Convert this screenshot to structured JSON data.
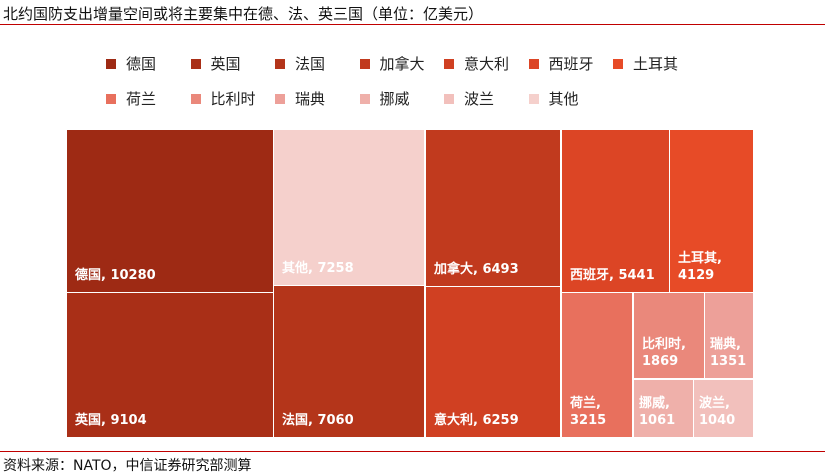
{
  "title": "北约国防支出增量空间或将主要集中在德、法、英三国（单位：亿美元）",
  "source": "资料来源：NATO，中信证券研究部测算",
  "chart_data": {
    "type": "treemap",
    "title": "北约国防支出增量空间或将主要集中在德、法、英三国（单位：亿美元）",
    "unit": "亿美元",
    "legend_position": "top",
    "items": [
      {
        "name": "德国",
        "value": 10280,
        "label": "德国, 10280",
        "color": "#9e2a14"
      },
      {
        "name": "英国",
        "value": 9104,
        "label": "英国, 9104",
        "color": "#a92f17"
      },
      {
        "name": "法国",
        "value": 7060,
        "label": "法国, 7060",
        "color": "#b4351a"
      },
      {
        "name": "加拿大",
        "value": 6493,
        "label": "加拿大, 6493",
        "color": "#c13a1e"
      },
      {
        "name": "意大利",
        "value": 6259,
        "label": "意大利, 6259",
        "color": "#d04022"
      },
      {
        "name": "西班牙",
        "value": 5441,
        "label": "西班牙, 5441",
        "color": "#dc4525"
      },
      {
        "name": "土耳其",
        "value": 4129,
        "label": "土耳其,\n4129",
        "color": "#e74b27"
      },
      {
        "name": "荷兰",
        "value": 3215,
        "label": "荷兰,\n3215",
        "color": "#e8705d"
      },
      {
        "name": "比利时",
        "value": 1869,
        "label": "比利时,\n1869",
        "color": "#ea887b"
      },
      {
        "name": "瑞典",
        "value": 1351,
        "label": "瑞典,\n1351",
        "color": "#eda099"
      },
      {
        "name": "挪威",
        "value": 1061,
        "label": "挪威,\n1061",
        "color": "#efb0aa"
      },
      {
        "name": "波兰",
        "value": 1040,
        "label": "波兰,\n1040",
        "color": "#f2c0bc"
      },
      {
        "name": "其他",
        "value": 7258,
        "label": "其他, 7258",
        "color": "#f5d0cc"
      }
    ]
  }
}
